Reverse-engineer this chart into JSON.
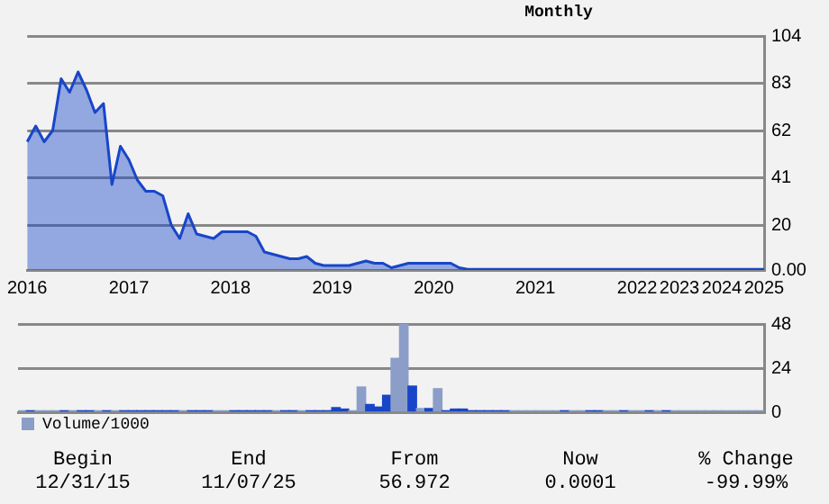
{
  "chart_data": [
    {
      "type": "area",
      "subtitle": "Monthly",
      "color": "#1846c8",
      "categories": [
        "2016",
        null,
        null,
        null,
        null,
        null,
        null,
        null,
        null,
        null,
        null,
        null,
        "2017",
        null,
        null,
        null,
        null,
        null,
        null,
        null,
        null,
        null,
        null,
        null,
        "2018",
        null,
        null,
        null,
        null,
        null,
        null,
        null,
        null,
        null,
        null,
        null,
        "2019",
        null,
        null,
        null,
        null,
        null,
        null,
        null,
        null,
        null,
        null,
        null,
        "2020",
        null,
        null,
        null,
        null,
        null,
        null,
        null,
        null,
        null,
        null,
        null,
        "2021",
        null,
        null,
        null,
        null,
        null,
        null,
        null,
        null,
        null,
        null,
        null,
        "2022",
        null,
        null,
        null,
        null,
        "2023",
        null,
        null,
        null,
        null,
        "2024",
        null,
        null,
        null,
        null,
        "2025"
      ],
      "values": [
        57,
        64,
        57,
        62,
        85,
        79,
        88,
        80,
        70,
        74,
        38,
        55,
        49,
        40,
        35,
        35,
        33,
        20,
        14,
        25,
        16,
        15,
        14,
        17,
        17,
        17,
        17,
        15,
        8,
        7,
        6,
        5,
        5,
        6,
        3,
        2,
        2,
        2,
        2,
        3,
        4,
        3,
        3,
        1,
        2,
        3,
        3,
        3,
        3,
        3,
        3,
        1,
        0.3,
        0.3,
        0.3,
        0.3,
        0.3,
        0.3,
        0.3,
        0.3,
        0.3,
        0.3,
        0.3,
        0.3,
        0.3,
        0.3,
        0.3,
        0.3,
        0.3,
        0.3,
        0.3,
        0.3,
        0.3,
        0.3,
        0.3,
        0.3,
        0.3,
        0.3,
        0.3,
        0.3,
        0.3,
        0.3,
        0.3,
        0.3,
        0.3,
        0.3,
        0.3,
        0.3
      ],
      "ylim": [
        0,
        104
      ],
      "yticks": [
        {
          "value": 0,
          "label": "0.00"
        },
        20,
        41,
        62,
        83,
        104
      ],
      "grid": "y"
    },
    {
      "type": "bar",
      "legend": "bottom",
      "tick_labels": "y",
      "categories": [
        null,
        null,
        null,
        null,
        null,
        null,
        null,
        null,
        null,
        null,
        null,
        null,
        null,
        null,
        null,
        null,
        null,
        null,
        null,
        null,
        null,
        null,
        null,
        null,
        null,
        null,
        null,
        null,
        null,
        null,
        null,
        null,
        null,
        null,
        null,
        null,
        null,
        null,
        null,
        null,
        null,
        null,
        null,
        null,
        null,
        null,
        null,
        null,
        null,
        null,
        null,
        null,
        null,
        null,
        null,
        null,
        null,
        null,
        null,
        null,
        null,
        null,
        null,
        null,
        null,
        null,
        null,
        null,
        null,
        null,
        null,
        null,
        null,
        null,
        null,
        null,
        null,
        null,
        null,
        null,
        null,
        null,
        null,
        null,
        null,
        null,
        null,
        null
      ],
      "series": [
        {
          "name": "Volume/1000",
          "color": "#8b9ec8",
          "colors": [
            "#8b9ec8",
            "#1846c8",
            "#8b9ec8",
            "#8b9ec8",
            "#8b9ec8",
            "#1846c8",
            "#8b9ec8",
            "#1846c8",
            "#1846c8",
            "#8b9ec8",
            "#1846c8",
            "#8b9ec8",
            "#1846c8",
            "#1846c8",
            "#1846c8",
            "#1846c8",
            "#1846c8",
            "#1846c8",
            "#1846c8",
            "#8b9ec8",
            "#1846c8",
            "#1846c8",
            "#1846c8",
            "#8b9ec8",
            "#8b9ec8",
            "#1846c8",
            "#1846c8",
            "#1846c8",
            "#1846c8",
            "#1846c8",
            "#8b9ec8",
            "#1846c8",
            "#1846c8",
            "#8b9ec8",
            "#1846c8",
            "#1846c8",
            "#1846c8",
            "#1846c8",
            "#1846c8",
            "#8b9ec8",
            "#8b9ec8",
            "#1846c8",
            "#1846c8",
            "#1846c8",
            "#8b9ec8",
            "#8b9ec8",
            "#1846c8",
            "#8b9ec8",
            "#1846c8",
            "#8b9ec8",
            "#1846c8",
            "#1846c8",
            "#1846c8",
            "#1846c8",
            "#1846c8",
            "#1846c8",
            "#1846c8",
            "#1846c8",
            "#8b9ec8",
            "#8b9ec8",
            "#8b9ec8",
            "#8b9ec8",
            "#8b9ec8",
            "#8b9ec8",
            "#1846c8",
            "#8b9ec8",
            "#8b9ec8",
            "#1846c8",
            "#1846c8",
            "#8b9ec8",
            "#8b9ec8",
            "#1846c8",
            "#8b9ec8",
            "#8b9ec8",
            "#1846c8",
            "#8b9ec8",
            "#1846c8",
            "#8b9ec8",
            "#8b9ec8",
            "#8b9ec8",
            "#8b9ec8",
            "#8b9ec8",
            "#8b9ec8",
            "#8b9ec8",
            "#8b9ec8",
            "#8b9ec8",
            "#8b9ec8",
            "#8b9ec8"
          ],
          "values": [
            0.8,
            0.8,
            0.8,
            0.8,
            0.8,
            0.8,
            0.8,
            0.8,
            0.8,
            0.8,
            0.8,
            0.8,
            0.8,
            0.8,
            0.8,
            0.8,
            0.8,
            0.8,
            0.8,
            0.8,
            0.8,
            0.8,
            0.8,
            0.8,
            0.8,
            0.8,
            0.8,
            0.8,
            0.8,
            0.8,
            0.8,
            0.8,
            0.8,
            0.8,
            0.8,
            0.8,
            0.8,
            2.5,
            1.7,
            0.8,
            13.7,
            4.2,
            2.8,
            9.2,
            29.3,
            47.7,
            14.2,
            2,
            2,
            12.8,
            0.8,
            1.7,
            1.7,
            0.8,
            0.8,
            0.8,
            0.8,
            0.8,
            0.8,
            0.8,
            0.8,
            0.8,
            0.8,
            0.8,
            0.8,
            0.8,
            0.8,
            0.8,
            0.8,
            0.8,
            0.8,
            0.8,
            0.8,
            0.8,
            0.8,
            0.8,
            0.8,
            0.8,
            0.8,
            0.8,
            0.8,
            0.8,
            0.8,
            0.8,
            0.8,
            0.8,
            0.8,
            0.8
          ]
        }
      ],
      "ylim": [
        0,
        48
      ],
      "yticks": [
        0,
        24,
        48
      ],
      "grid": "y",
      "annotations": [
        "Begin",
        "12/31/15",
        "End",
        "11/07/25",
        "From",
        "56.972",
        "Now",
        "0.0001",
        "% Change",
        "-99.99%"
      ]
    }
  ]
}
